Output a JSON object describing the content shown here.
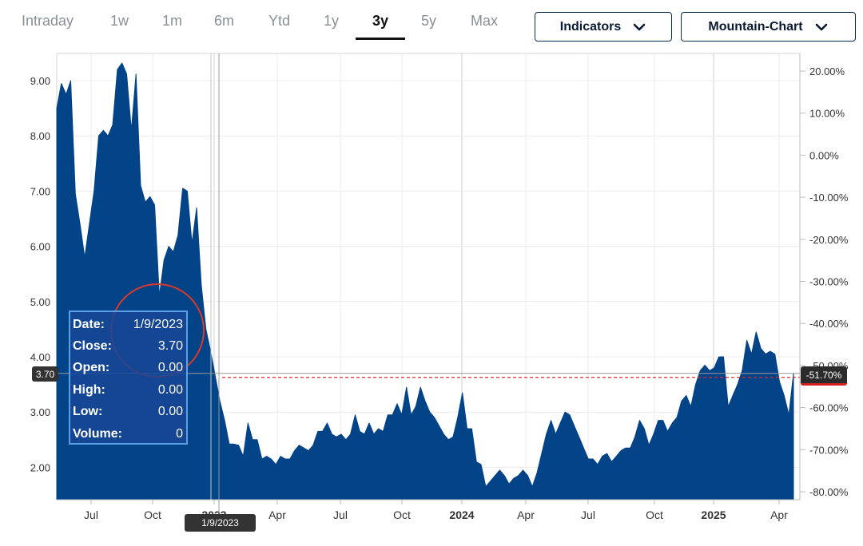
{
  "tabs": {
    "items": [
      "Intraday",
      "1w",
      "1m",
      "6m",
      "Ytd",
      "1y",
      "3y",
      "5y",
      "Max"
    ],
    "active": "3y"
  },
  "controls": {
    "indicators_label": "Indicators",
    "chart_type_label": "Mountain-Chart"
  },
  "tooltip": {
    "rows": [
      {
        "key": "Date:",
        "value": "1/9/2023"
      },
      {
        "key": "Close:",
        "value": "3.70"
      },
      {
        "key": "Open:",
        "value": "0.00"
      },
      {
        "key": "High:",
        "value": "0.00"
      },
      {
        "key": "Low:",
        "value": "0.00"
      },
      {
        "key": "Volume:",
        "value": "0"
      }
    ]
  },
  "crosshair": {
    "date_label": "1/9/2023",
    "price_label": "3.70",
    "pct_label": "-51.70%"
  },
  "colors": {
    "area_fill": "#034388",
    "crosshair_line": "#999999",
    "current_line": "#e02828",
    "highlight_circle": "#d93a2b"
  },
  "chart_data": {
    "type": "area",
    "title": "",
    "xlabel": "",
    "ylabel": "",
    "x_ticks": [
      "Jul",
      "Oct",
      "2023",
      "Apr",
      "Jul",
      "Oct",
      "2024",
      "Apr",
      "Jul",
      "Oct",
      "2025",
      "Apr"
    ],
    "y_ticks_left": [
      "9.00",
      "8.00",
      "7.00",
      "6.00",
      "5.00",
      "4.00",
      "3.00",
      "2.00"
    ],
    "y_ticks_right": [
      "20.00%",
      "10.00%",
      "0.00%",
      "-10.00%",
      "-20.00%",
      "-30.00%",
      "-40.00%",
      "-50.00%",
      "-60.00%",
      "-70.00%",
      "-80.00%"
    ],
    "ylim": [
      1.4,
      9.45
    ],
    "grid": true,
    "series": [
      {
        "values": [
          8.5,
          8.95,
          8.75,
          9.0,
          6.95,
          6.4,
          5.8,
          6.4,
          7.0,
          8.0,
          8.1,
          8.0,
          8.2,
          9.2,
          9.32,
          9.12,
          8.1,
          9.12,
          7.1,
          6.8,
          6.9,
          6.75,
          5.1,
          5.75,
          6.0,
          5.9,
          6.2,
          7.05,
          7.0,
          6.05,
          6.7,
          5.3,
          4.5,
          4.1,
          3.65,
          3.2,
          2.85,
          2.42,
          2.42,
          2.4,
          2.2,
          2.8,
          2.5,
          2.5,
          2.15,
          2.2,
          2.15,
          2.05,
          2.2,
          2.15,
          2.15,
          2.3,
          2.4,
          2.35,
          2.3,
          2.4,
          2.65,
          2.65,
          2.8,
          2.6,
          2.55,
          2.6,
          2.5,
          2.6,
          2.95,
          2.65,
          2.6,
          2.8,
          2.6,
          2.7,
          2.65,
          2.95,
          2.95,
          3.15,
          2.95,
          3.45,
          2.95,
          3.1,
          3.45,
          3.2,
          3.0,
          2.9,
          2.75,
          2.6,
          2.5,
          2.55,
          2.9,
          3.35,
          2.7,
          2.7,
          2.1,
          2.05,
          1.65,
          1.75,
          1.85,
          1.95,
          1.85,
          1.7,
          1.8,
          1.85,
          1.95,
          1.85,
          1.65,
          1.9,
          2.25,
          2.6,
          2.85,
          2.6,
          2.8,
          3.0,
          2.95,
          2.75,
          2.55,
          2.35,
          2.15,
          2.15,
          2.05,
          2.2,
          2.25,
          2.1,
          2.2,
          2.3,
          2.35,
          2.35,
          2.55,
          2.85,
          2.7,
          2.4,
          2.6,
          2.85,
          2.85,
          2.65,
          2.8,
          2.9,
          3.2,
          3.3,
          3.1,
          3.5,
          3.75,
          3.85,
          3.75,
          3.8,
          4.0,
          4.0,
          3.1,
          3.3,
          3.5,
          3.75,
          4.3,
          4.05,
          4.45,
          4.15,
          4.05,
          4.1,
          4.05,
          3.55,
          3.3,
          2.95,
          3.7
        ]
      }
    ]
  }
}
